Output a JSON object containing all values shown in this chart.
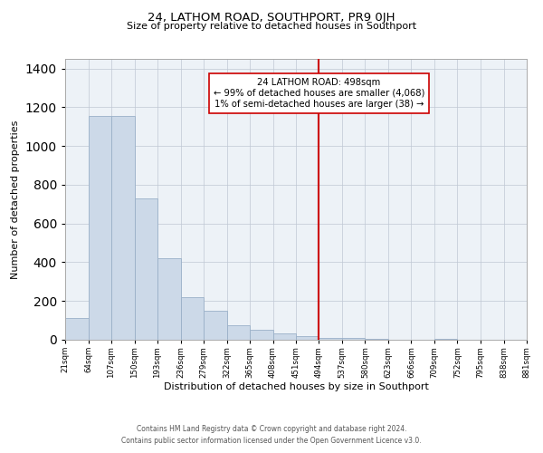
{
  "title": "24, LATHOM ROAD, SOUTHPORT, PR9 0JH",
  "subtitle": "Size of property relative to detached houses in Southport",
  "xlabel": "Distribution of detached houses by size in Southport",
  "ylabel": "Number of detached properties",
  "bar_left_edges": [
    21,
    64,
    107,
    150,
    193,
    236,
    279,
    322,
    365,
    408,
    451,
    494,
    537,
    580,
    623,
    666,
    709,
    752,
    795,
    838
  ],
  "bar_heights": [
    110,
    1155,
    1155,
    730,
    420,
    220,
    148,
    75,
    50,
    35,
    20,
    10,
    8,
    5,
    0,
    0,
    5,
    0,
    0,
    0
  ],
  "bin_width": 43,
  "tick_labels": [
    "21sqm",
    "64sqm",
    "107sqm",
    "150sqm",
    "193sqm",
    "236sqm",
    "279sqm",
    "322sqm",
    "365sqm",
    "408sqm",
    "451sqm",
    "494sqm",
    "537sqm",
    "580sqm",
    "623sqm",
    "666sqm",
    "709sqm",
    "752sqm",
    "795sqm",
    "838sqm",
    "881sqm"
  ],
  "bar_color": "#ccd9e8",
  "bar_edge_color": "#9ab0c8",
  "vline_x": 494,
  "vline_color": "#cc0000",
  "ylim": [
    0,
    1450
  ],
  "yticks": [
    0,
    200,
    400,
    600,
    800,
    1000,
    1200,
    1400
  ],
  "annotation_title": "24 LATHOM ROAD: 498sqm",
  "annotation_line1": "← 99% of detached houses are smaller (4,068)",
  "annotation_line2": "1% of semi-detached houses are larger (38) →",
  "footer_line1": "Contains HM Land Registry data © Crown copyright and database right 2024.",
  "footer_line2": "Contains public sector information licensed under the Open Government Licence v3.0.",
  "background_color": "#edf2f7",
  "grid_color": "#c0c8d4"
}
